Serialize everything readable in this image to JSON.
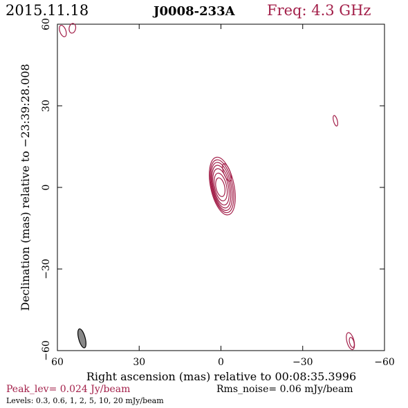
{
  "header": {
    "date": "2015.11.18",
    "source": "J0008-233A",
    "freq": "Freq: 4.3 GHz"
  },
  "footer": {
    "peak": "Peak_lev=  0.024 Jy/beam",
    "rms": "Rms_noise= 0.06 mJy/beam",
    "levels": "Levels: 0.3, 0.6,   1,   2,   5,  10,  20 mJy/beam"
  },
  "colors": {
    "accent": "#a3204a",
    "axis": "#000000",
    "beam": "#888888"
  },
  "chart_data": {
    "type": "contour",
    "xlabel": "Right ascension (mas) relative to 00:08:35.3996",
    "ylabel": "Declination (mas) relative to −23:39:28.008",
    "xlim": [
      60,
      -60
    ],
    "ylim": [
      -60,
      60
    ],
    "x_ticks": [
      {
        "value": 60,
        "label": "60"
      },
      {
        "value": 30,
        "label": "30"
      },
      {
        "value": 0,
        "label": "0"
      },
      {
        "value": -30,
        "label": "−30"
      },
      {
        "value": -60,
        "label": "−60"
      }
    ],
    "y_ticks": [
      {
        "value": 60,
        "label": "60"
      },
      {
        "value": 30,
        "label": "30"
      },
      {
        "value": 0,
        "label": "0"
      },
      {
        "value": -30,
        "label": "−30"
      },
      {
        "value": -60,
        "label": "−60"
      }
    ],
    "contour_levels_mJy": [
      0.3,
      0.6,
      1,
      2,
      5,
      10,
      20
    ],
    "core": {
      "ra": -0.5,
      "dec": 0.5,
      "rx": [
        1.6,
        2.2,
        2.7,
        3.1,
        3.5,
        3.9,
        4.3
      ],
      "ry": [
        3.5,
        5.2,
        6.8,
        8.0,
        9.0,
        9.9,
        10.8
      ],
      "pa_deg": -12
    },
    "blobs": [
      {
        "ra": 58,
        "dec": 57.5,
        "rx": 1.1,
        "ry": 2.2,
        "pa_deg": -20
      },
      {
        "ra": 54.5,
        "dec": 58.5,
        "rx": 1.2,
        "ry": 1.8,
        "pa_deg": 10
      },
      {
        "ra": -42,
        "dec": 24.5,
        "rx": 0.7,
        "ry": 2.0,
        "pa_deg": -15
      },
      {
        "ra": -47.5,
        "dec": -56.5,
        "rx": 1.3,
        "ry": 3.2,
        "pa_deg": -15
      },
      {
        "ra": -48,
        "dec": -57,
        "rx": 0.8,
        "ry": 1.9,
        "pa_deg": -15
      }
    ],
    "extension": {
      "ra": -2.2,
      "dec": 5.5,
      "rx": 1.2,
      "ry": 3.4,
      "pa_deg": -20
    },
    "beam": {
      "ra": 51,
      "dec": -55.5,
      "rx": 1.2,
      "ry": 3.6,
      "pa_deg": -15
    }
  }
}
